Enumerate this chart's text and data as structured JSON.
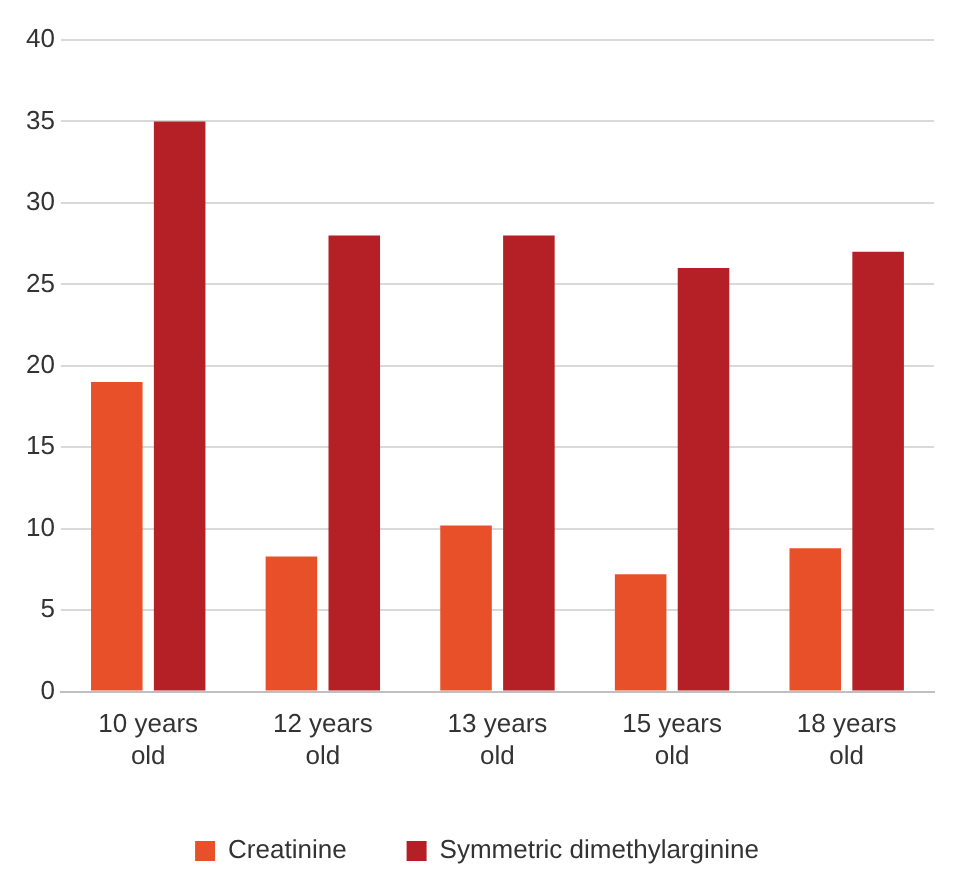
{
  "chart_data": {
    "type": "bar",
    "categories": [
      "10 years old",
      "12 years old",
      "13 years old",
      "15 years old",
      "18 years old"
    ],
    "series": [
      {
        "name": "Creatinine",
        "color": "#e8502a",
        "values": [
          19,
          8.3,
          10.2,
          7.2,
          8.8
        ]
      },
      {
        "name": "Symmetric dimethylarginine",
        "color": "#b42025",
        "values": [
          35,
          28,
          28,
          26,
          27
        ]
      }
    ],
    "ylim": [
      0,
      40
    ],
    "yticks": [
      0,
      5,
      10,
      15,
      20,
      25,
      30,
      35,
      40
    ],
    "grid": "y",
    "legend": "bottom"
  }
}
